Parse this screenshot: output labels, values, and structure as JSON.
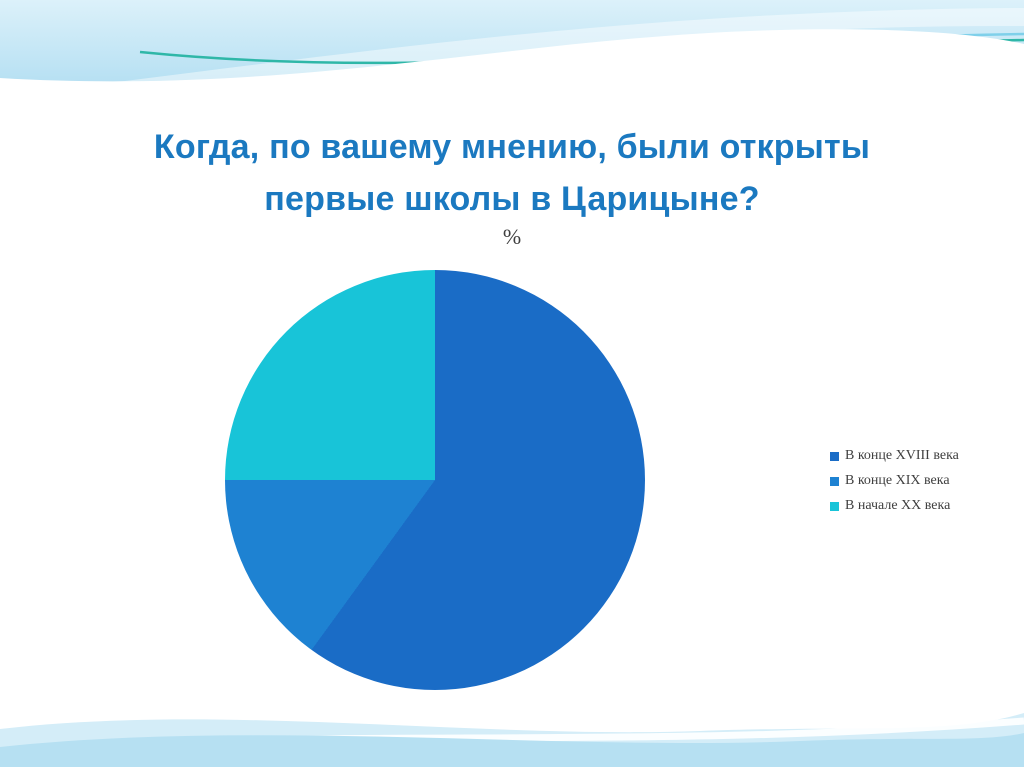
{
  "slide": {
    "title_lines": [
      "Когда, по вашему мнению, были открыты",
      "первые школы в Царицыне?"
    ],
    "title_color": "#1b79c0"
  },
  "chart_data": {
    "type": "pie",
    "title": "%",
    "legend_position": "right",
    "series": [
      {
        "name": "В конце XVIII века",
        "value": 60,
        "color": "#1a6cc6"
      },
      {
        "name": "В конце XIX века",
        "value": 15,
        "color": "#1e82d2"
      },
      {
        "name": "В начале XX века",
        "value": 25,
        "color": "#18c4d8"
      }
    ]
  }
}
